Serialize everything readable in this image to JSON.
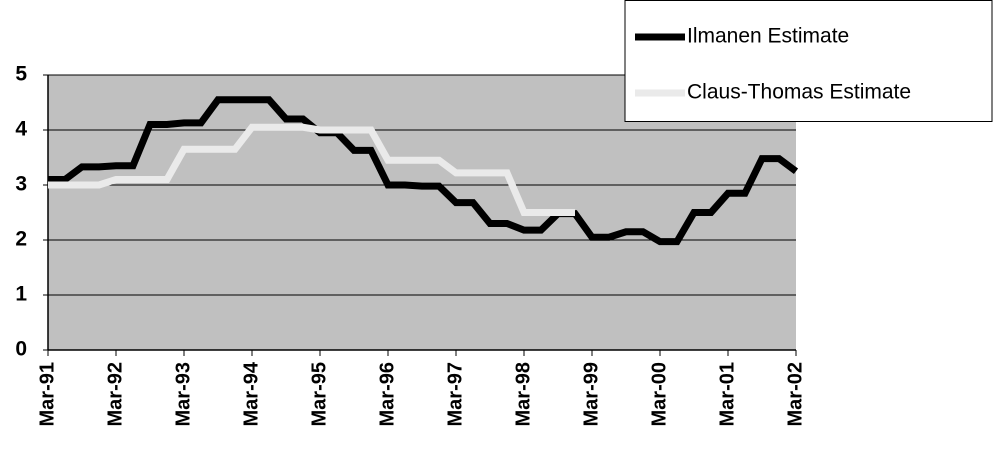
{
  "chart_data": {
    "type": "line",
    "categories": [
      "Mar-91",
      null,
      null,
      null,
      "Mar-92",
      null,
      null,
      null,
      "Mar-93",
      null,
      null,
      null,
      "Mar-94",
      null,
      null,
      null,
      "Mar-95",
      null,
      null,
      null,
      "Mar-96",
      null,
      null,
      null,
      "Mar-97",
      null,
      null,
      null,
      "Mar-98",
      null,
      null,
      null,
      "Mar-99",
      null,
      null,
      null,
      "Mar-00",
      null,
      null,
      null,
      "Mar-01",
      null,
      null,
      null,
      "Mar-02"
    ],
    "series": [
      {
        "name": "Ilmanen Estimate",
        "color": "#000000",
        "values": [
          3.1,
          3.1,
          3.33,
          3.33,
          3.35,
          3.35,
          4.1,
          4.1,
          4.13,
          4.13,
          4.55,
          4.55,
          4.55,
          4.55,
          4.2,
          4.2,
          3.95,
          3.95,
          3.63,
          3.63,
          3.0,
          3.0,
          2.98,
          2.98,
          2.68,
          2.68,
          2.3,
          2.3,
          2.18,
          2.18,
          2.48,
          2.48,
          2.05,
          2.05,
          2.15,
          2.15,
          1.97,
          1.97,
          2.5,
          2.5,
          2.85,
          2.85,
          3.48,
          3.48,
          3.25
        ]
      },
      {
        "name": "Claus-Thomas Estimate",
        "color": "#eaeaea",
        "values": [
          3.0,
          3.0,
          3.0,
          3.0,
          3.1,
          3.1,
          3.1,
          3.1,
          3.65,
          3.65,
          3.65,
          3.65,
          4.05,
          4.05,
          4.05,
          4.05,
          4.0,
          4.0,
          4.0,
          4.0,
          3.45,
          3.45,
          3.45,
          3.45,
          3.22,
          3.22,
          3.22,
          3.22,
          2.5,
          2.5,
          2.5,
          2.5,
          null,
          null,
          null,
          null,
          null,
          null,
          null,
          null,
          null,
          null,
          null,
          null,
          null
        ]
      }
    ],
    "ylim": [
      0,
      5
    ],
    "yticks": [
      0,
      1,
      2,
      3,
      4,
      5
    ],
    "grid": true,
    "legend": "top-right",
    "plot_background": "#c0c0c0"
  }
}
